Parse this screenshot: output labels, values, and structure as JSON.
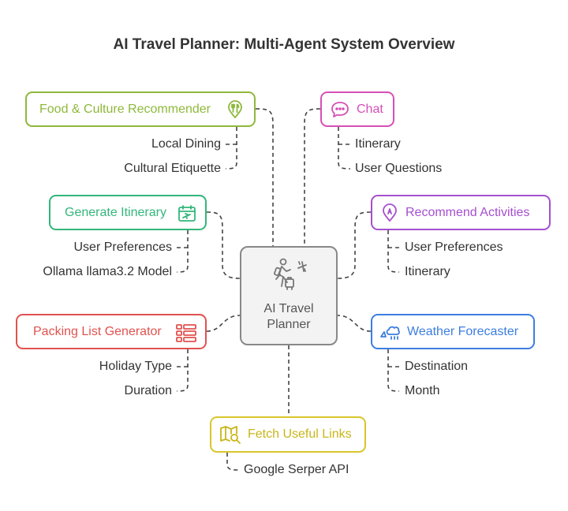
{
  "title": "AI Travel Planner: Multi-Agent System Overview",
  "center": {
    "line1": "AI Travel",
    "line2": "Planner",
    "icon": "traveler-icon"
  },
  "colors": {
    "food": "#8fb83c",
    "chat": "#d64fb6",
    "itinerary": "#33b67a",
    "activities": "#a64fd0",
    "packing": "#e0524f",
    "weather": "#3d7ee0",
    "links": "#d8c62a",
    "connector": "#444444"
  },
  "agents": {
    "food": {
      "label": "Food & Culture Recommender",
      "icon": "food-pin-icon",
      "items": [
        "Local Dining",
        "Cultural Etiquette"
      ]
    },
    "chat": {
      "label": "Chat",
      "icon": "chat-bubble-icon",
      "items": [
        "Itinerary",
        "User Questions"
      ]
    },
    "itinerary": {
      "label": "Generate Itinerary",
      "icon": "calendar-plane-icon",
      "items": [
        "User Preferences",
        "Ollama llama3.2 Model"
      ]
    },
    "activities": {
      "label": "Recommend Activities",
      "icon": "map-pin-icon",
      "items": [
        "User Preferences",
        "Itinerary"
      ]
    },
    "packing": {
      "label": "Packing List Generator",
      "icon": "list-icon",
      "items": [
        "Holiday Type",
        "Duration"
      ]
    },
    "weather": {
      "label": "Weather Forecaster",
      "icon": "weather-icon",
      "items": [
        "Destination",
        "Month"
      ]
    },
    "links": {
      "label": "Fetch Useful Links",
      "icon": "map-search-icon",
      "items": [
        "Google Serper API"
      ]
    }
  }
}
